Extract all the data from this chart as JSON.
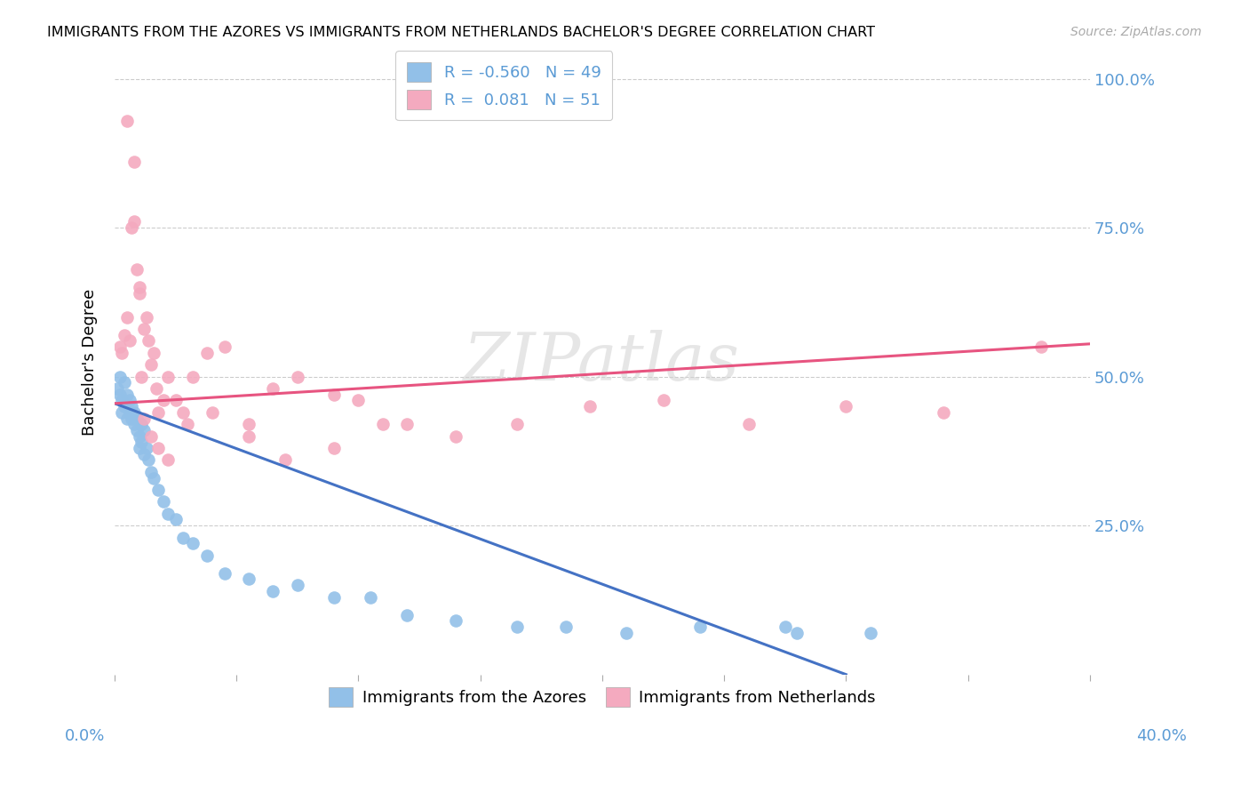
{
  "title": "IMMIGRANTS FROM THE AZORES VS IMMIGRANTS FROM NETHERLANDS BACHELOR'S DEGREE CORRELATION CHART",
  "source": "Source: ZipAtlas.com",
  "ylabel": "Bachelor's Degree",
  "ytick_vals": [
    0.25,
    0.5,
    0.75,
    1.0
  ],
  "ytick_labels": [
    "25.0%",
    "50.0%",
    "75.0%",
    "100.0%"
  ],
  "color_azores": "#92C0E8",
  "color_netherlands": "#F4AABF",
  "line_color_azores": "#4472C4",
  "line_color_netherlands": "#E75480",
  "background_color": "#FFFFFF",
  "watermark": "ZIPatlas",
  "xlim": [
    0.0,
    0.4
  ],
  "ylim": [
    0.0,
    1.05
  ],
  "azores_x": [
    0.001,
    0.002,
    0.002,
    0.003,
    0.003,
    0.004,
    0.004,
    0.005,
    0.005,
    0.006,
    0.006,
    0.007,
    0.007,
    0.008,
    0.008,
    0.009,
    0.009,
    0.01,
    0.01,
    0.011,
    0.011,
    0.012,
    0.012,
    0.013,
    0.014,
    0.015,
    0.016,
    0.018,
    0.02,
    0.022,
    0.025,
    0.028,
    0.032,
    0.038,
    0.045,
    0.055,
    0.065,
    0.075,
    0.09,
    0.105,
    0.12,
    0.14,
    0.165,
    0.185,
    0.21,
    0.24,
    0.275,
    0.31,
    0.28
  ],
  "azores_y": [
    0.48,
    0.47,
    0.5,
    0.44,
    0.46,
    0.45,
    0.49,
    0.43,
    0.47,
    0.44,
    0.46,
    0.43,
    0.45,
    0.42,
    0.44,
    0.41,
    0.43,
    0.4,
    0.38,
    0.42,
    0.39,
    0.41,
    0.37,
    0.38,
    0.36,
    0.34,
    0.33,
    0.31,
    0.29,
    0.27,
    0.26,
    0.23,
    0.22,
    0.2,
    0.17,
    0.16,
    0.14,
    0.15,
    0.13,
    0.13,
    0.1,
    0.09,
    0.08,
    0.08,
    0.07,
    0.08,
    0.08,
    0.07,
    0.07
  ],
  "netherlands_x": [
    0.002,
    0.003,
    0.004,
    0.005,
    0.006,
    0.007,
    0.008,
    0.009,
    0.01,
    0.011,
    0.012,
    0.013,
    0.014,
    0.015,
    0.016,
    0.017,
    0.018,
    0.02,
    0.022,
    0.025,
    0.028,
    0.032,
    0.038,
    0.045,
    0.055,
    0.065,
    0.075,
    0.09,
    0.1,
    0.12,
    0.14,
    0.165,
    0.195,
    0.225,
    0.26,
    0.3,
    0.34,
    0.38,
    0.005,
    0.008,
    0.01,
    0.012,
    0.015,
    0.018,
    0.022,
    0.03,
    0.04,
    0.055,
    0.07,
    0.09,
    0.11
  ],
  "netherlands_y": [
    0.55,
    0.54,
    0.57,
    0.6,
    0.56,
    0.75,
    0.76,
    0.68,
    0.64,
    0.5,
    0.58,
    0.6,
    0.56,
    0.52,
    0.54,
    0.48,
    0.44,
    0.46,
    0.5,
    0.46,
    0.44,
    0.5,
    0.54,
    0.55,
    0.42,
    0.48,
    0.5,
    0.47,
    0.46,
    0.42,
    0.4,
    0.42,
    0.45,
    0.46,
    0.42,
    0.45,
    0.44,
    0.55,
    0.93,
    0.86,
    0.65,
    0.43,
    0.4,
    0.38,
    0.36,
    0.42,
    0.44,
    0.4,
    0.36,
    0.38,
    0.42
  ],
  "r_azores": -0.56,
  "n_azores": 49,
  "r_netherlands": 0.081,
  "n_netherlands": 51,
  "line_azores_x0": 0.0,
  "line_azores_y0": 0.455,
  "line_azores_x1": 0.3,
  "line_azores_y1": 0.0,
  "line_netherlands_x0": 0.0,
  "line_netherlands_y0": 0.455,
  "line_netherlands_x1": 0.4,
  "line_netherlands_y1": 0.555
}
